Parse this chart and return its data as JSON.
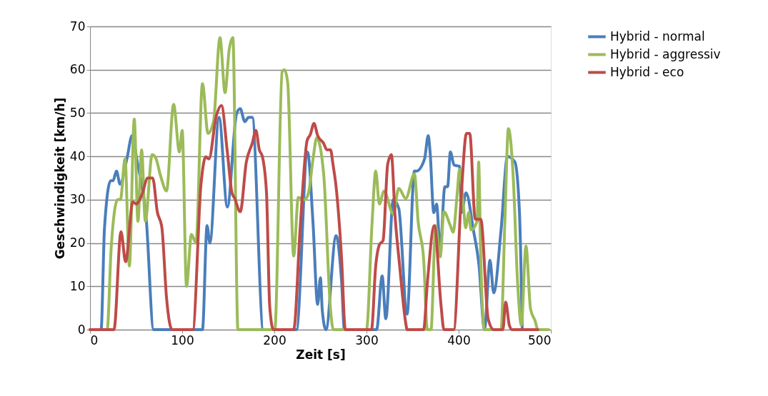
{
  "chart_data": {
    "type": "line",
    "xlabel": "Zeit [s]",
    "ylabel": "Geschwindigkeit [km/h]",
    "xlim": [
      0,
      500
    ],
    "xticks": [
      0,
      100,
      200,
      300,
      400,
      500
    ],
    "ylim": [
      0,
      70
    ],
    "yticks": [
      0,
      10,
      20,
      30,
      40,
      50,
      60,
      70
    ],
    "grid": "y",
    "legend": "right",
    "line_style": "solid",
    "marker": "none",
    "series": [
      {
        "name": "Hybrid - normal",
        "color": "#4a7ebb",
        "x": [
          0,
          12,
          15.7,
          22.5,
          25,
          28.7,
          32.6,
          40,
          45.7,
          51,
          61,
          69,
          122,
          127,
          130,
          140,
          149,
          159,
          163,
          168,
          172,
          176,
          188,
          224,
          236,
          242,
          247,
          250,
          252,
          256,
          267,
          273,
          276,
          311,
          317,
          321,
          329,
          335,
          344,
          352,
          354,
          363,
          367,
          369,
          373,
          376,
          380,
          385,
          388,
          391,
          395,
          401,
          403,
          408,
          416,
          422,
          428,
          434,
          438,
          446,
          453,
          461,
          466,
          469
        ],
        "values": [
          0,
          0,
          23.4,
          34.4,
          34.4,
          36.6,
          33.6,
          39.4,
          44.8,
          39,
          25.5,
          0,
          0,
          24,
          20,
          49,
          28.3,
          49.8,
          51,
          48,
          49,
          49,
          0,
          0,
          41,
          24.5,
          5.8,
          12,
          4.5,
          0,
          21.7,
          11,
          0,
          0,
          12.4,
          2.5,
          30,
          28,
          3.6,
          36.6,
          36.6,
          39.4,
          44.8,
          41,
          27,
          29,
          18.5,
          33,
          33,
          41,
          38,
          37.7,
          27,
          31.6,
          23,
          15,
          0,
          16,
          8.5,
          23,
          40,
          38.7,
          27,
          0
        ]
      },
      {
        "name": "Hybrid - aggressiv",
        "color": "#9bbb59",
        "x": [
          0,
          18.6,
          23,
          30,
          33,
          38,
          42.7,
          48,
          52,
          56,
          60,
          67.4,
          71,
          76.7,
          83,
          90.7,
          97,
          100,
          104.7,
          110,
          115,
          122,
          128,
          134,
          141,
          146.5,
          151,
          155,
          160.5,
          200.5,
          208.5,
          211,
          214.5,
          221,
          226,
          233,
          237,
          242,
          246,
          253.5,
          261,
          264,
          300,
          306,
          310,
          314,
          319,
          329,
          335,
          342.6,
          352,
          356,
          362,
          366,
          370,
          375,
          380,
          384,
          391,
          394,
          398.5,
          401,
          405,
          407.6,
          411,
          413.5,
          420,
          421.7,
          424,
          428,
          446,
          450,
          454,
          459,
          464,
          468,
          473,
          478,
          483,
          486,
          497.7
        ],
        "values": [
          0,
          0,
          19,
          30,
          30,
          39.4,
          14.7,
          48.6,
          25,
          41.5,
          25,
          40.4,
          39.8,
          35.4,
          32,
          52,
          41,
          46,
          10,
          22,
          20,
          56.8,
          45.3,
          48,
          67.4,
          54.7,
          64.6,
          67.4,
          0,
          0,
          59.6,
          60,
          57,
          17,
          30.5,
          30,
          31.5,
          39.4,
          44.3,
          36,
          4.5,
          0,
          0,
          24.5,
          36.6,
          29,
          32,
          26.7,
          32.6,
          30.3,
          36,
          25,
          16.3,
          0,
          0,
          24,
          16.8,
          27.2,
          24,
          22.5,
          31.6,
          37,
          29,
          23.5,
          27,
          23,
          25,
          38.7,
          16,
          0,
          0,
          24,
          46.4,
          36,
          10.7,
          1,
          19.3,
          4.8,
          2,
          0,
          0
        ]
      },
      {
        "name": "Hybrid - eco",
        "color": "#be4b48",
        "x": [
          0,
          26,
          33.6,
          38.6,
          46.5,
          50,
          56,
          62.7,
          68,
          73,
          78,
          83,
          89,
          111.5,
          120.5,
          125.6,
          129,
          137,
          142.6,
          149,
          154,
          157,
          163,
          169.6,
          176,
          180,
          183.7,
          187,
          191.5,
          195,
          199,
          221,
          228,
          235.6,
          239,
          243,
          247,
          253.5,
          257,
          261,
          263.6,
          267,
          273,
          277,
          305.4,
          310,
          314,
          318,
          323,
          327,
          331,
          336,
          342.6,
          344,
          362,
          366,
          373.6,
          381,
          384,
          394.6,
          403,
          408.5,
          412,
          418,
          424,
          432,
          438,
          448,
          451,
          455,
          458,
          486
        ],
        "values": [
          0,
          0,
          22.6,
          15.7,
          29.5,
          29,
          31,
          35,
          35,
          27.2,
          23.5,
          7.4,
          0,
          0,
          33.8,
          39.9,
          39.4,
          49.3,
          51.7,
          41,
          31.6,
          30.3,
          27.2,
          38.7,
          43,
          46,
          41.5,
          40,
          31.6,
          5.3,
          0,
          0,
          23.4,
          43.7,
          45,
          47.6,
          44.8,
          43,
          41.5,
          41.5,
          38.2,
          33,
          16.3,
          0,
          0,
          14.7,
          19.6,
          20.6,
          38.2,
          40.4,
          26.2,
          14.7,
          1.5,
          0,
          0,
          10.7,
          24,
          5.3,
          0,
          0,
          31.6,
          45.3,
          45.3,
          25.5,
          25.5,
          2.5,
          0,
          0,
          6.4,
          1,
          0,
          0
        ]
      }
    ]
  }
}
